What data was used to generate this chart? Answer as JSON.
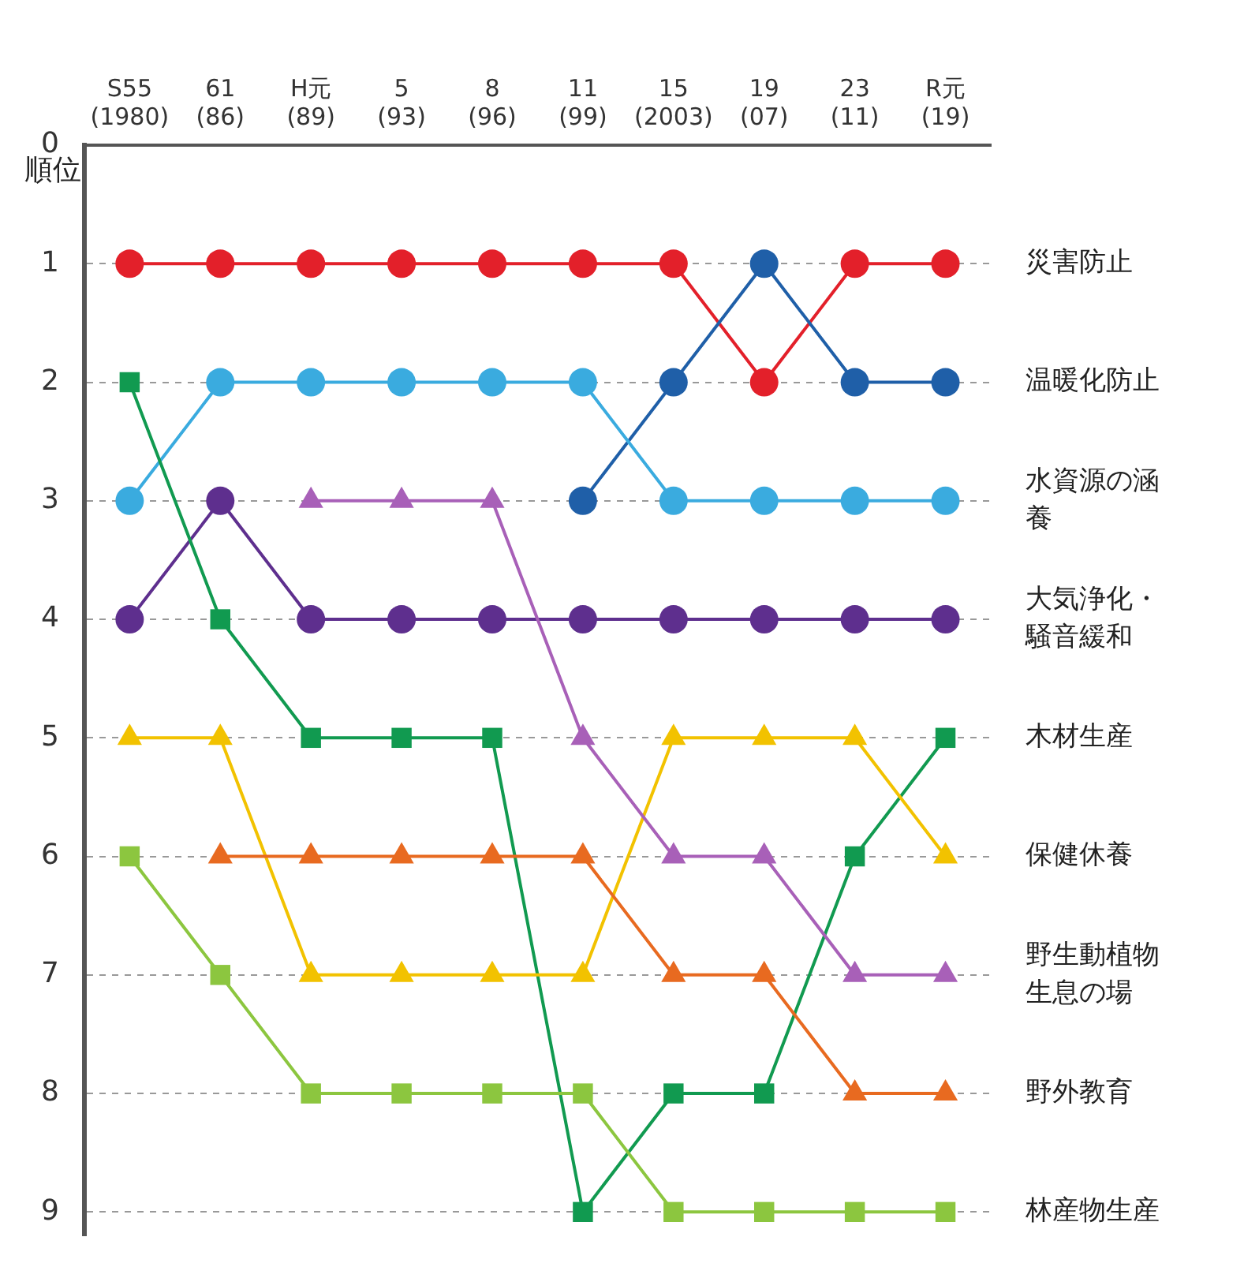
{
  "chart_data": {
    "type": "line",
    "categories": [
      "S55 (1980)",
      "61 (86)",
      "H元 (89)",
      "5 (93)",
      "8 (96)",
      "11 (99)",
      "15 (2003)",
      "19 (07)",
      "23 (11)",
      "R元 (19)"
    ],
    "ylabel": "順位",
    "ylim": [
      9.2,
      0
    ],
    "yticks": [
      0,
      1,
      2,
      3,
      4,
      5,
      6,
      7,
      8,
      9
    ],
    "grid": "y",
    "legend": false,
    "line_style": "solid",
    "series": [
      {
        "name": "林産物生産",
        "color": "#8cc63f",
        "marker": "square",
        "values": [
          6,
          7,
          8,
          8,
          8,
          8,
          9,
          9,
          9,
          9
        ]
      },
      {
        "name": "野外教育",
        "color": "#e86a20",
        "marker": "triangle",
        "values": [
          null,
          6,
          6,
          6,
          6,
          6,
          7,
          7,
          8,
          8
        ]
      },
      {
        "name": "野生動植物生息の場",
        "color": "#a860b8",
        "marker": "triangle",
        "values": [
          null,
          null,
          3,
          3,
          3,
          5,
          6,
          6,
          7,
          7
        ]
      },
      {
        "name": "保健休養",
        "color": "#f2c200",
        "marker": "triangle",
        "values": [
          5,
          5,
          7,
          7,
          7,
          7,
          5,
          5,
          5,
          6
        ]
      },
      {
        "name": "木材生産",
        "color": "#119a50",
        "marker": "square",
        "values": [
          2,
          4,
          5,
          5,
          5,
          9,
          8,
          8,
          6,
          5
        ]
      },
      {
        "name": "大気浄化・騒音緩和",
        "color": "#5e2f8e",
        "marker": "circle",
        "values": [
          4,
          3,
          4,
          4,
          4,
          4,
          4,
          4,
          4,
          4
        ]
      },
      {
        "name": "水資源の涵養",
        "color": "#3aabdf",
        "marker": "circle",
        "values": [
          3,
          2,
          2,
          2,
          2,
          2,
          3,
          3,
          3,
          3
        ]
      },
      {
        "name": "温暖化防止",
        "color": "#1f5fa8",
        "marker": "circle",
        "values": [
          null,
          null,
          null,
          null,
          null,
          3,
          2,
          1,
          2,
          2
        ]
      },
      {
        "name": "災害防止",
        "color": "#e3202a",
        "marker": "circle",
        "values": [
          1,
          1,
          1,
          1,
          1,
          1,
          1,
          2,
          1,
          1
        ]
      }
    ]
  }
}
